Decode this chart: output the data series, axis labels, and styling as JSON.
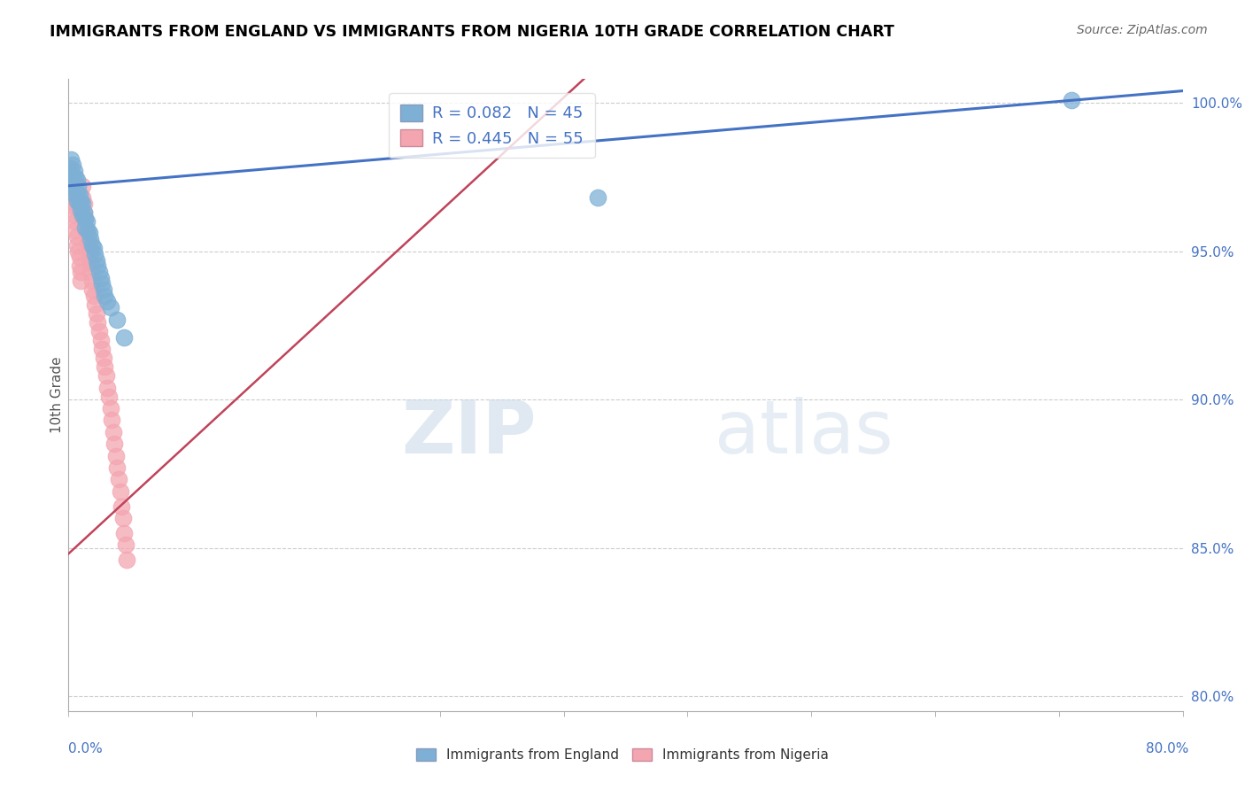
{
  "title": "IMMIGRANTS FROM ENGLAND VS IMMIGRANTS FROM NIGERIA 10TH GRADE CORRELATION CHART",
  "source": "Source: ZipAtlas.com",
  "ylabel": "10th Grade",
  "ylabel_right_ticks": [
    "100.0%",
    "95.0%",
    "90.0%",
    "85.0%",
    "80.0%"
  ],
  "ylabel_right_vals": [
    1.0,
    0.95,
    0.9,
    0.85,
    0.8
  ],
  "xmin": 0.0,
  "xmax": 0.8,
  "ymin": 0.795,
  "ymax": 1.008,
  "blue_R": 0.082,
  "blue_N": 45,
  "pink_R": 0.445,
  "pink_N": 55,
  "blue_color": "#7EB0D5",
  "pink_color": "#F4A6B0",
  "blue_line_color": "#4472C4",
  "pink_line_color": "#C0435A",
  "legend_label_blue": "Immigrants from England",
  "legend_label_pink": "Immigrants from Nigeria",
  "watermark_zip": "ZIP",
  "watermark_atlas": "atlas",
  "blue_line_x0": 0.0,
  "blue_line_y0": 0.972,
  "blue_line_x1": 0.8,
  "blue_line_y1": 1.004,
  "pink_line_x0": 0.0,
  "pink_line_y0": 0.848,
  "pink_line_x1": 0.37,
  "pink_line_y1": 1.008,
  "blue_x": [
    0.001,
    0.001,
    0.001,
    0.002,
    0.002,
    0.003,
    0.003,
    0.004,
    0.004,
    0.005,
    0.005,
    0.006,
    0.006,
    0.006,
    0.007,
    0.007,
    0.008,
    0.008,
    0.009,
    0.009,
    0.01,
    0.01,
    0.011,
    0.012,
    0.012,
    0.013,
    0.014,
    0.015,
    0.016,
    0.017,
    0.018,
    0.019,
    0.02,
    0.021,
    0.022,
    0.023,
    0.024,
    0.025,
    0.026,
    0.028,
    0.03,
    0.035,
    0.04,
    0.38,
    0.72
  ],
  "blue_y": [
    0.978,
    0.975,
    0.972,
    0.981,
    0.976,
    0.979,
    0.974,
    0.977,
    0.971,
    0.975,
    0.969,
    0.974,
    0.97,
    0.967,
    0.972,
    0.968,
    0.969,
    0.966,
    0.967,
    0.964,
    0.966,
    0.962,
    0.963,
    0.961,
    0.958,
    0.96,
    0.957,
    0.956,
    0.954,
    0.952,
    0.951,
    0.949,
    0.947,
    0.945,
    0.943,
    0.941,
    0.939,
    0.937,
    0.935,
    0.933,
    0.931,
    0.927,
    0.921,
    0.968,
    1.001
  ],
  "pink_x": [
    0.001,
    0.001,
    0.002,
    0.002,
    0.003,
    0.004,
    0.004,
    0.005,
    0.005,
    0.006,
    0.006,
    0.007,
    0.008,
    0.008,
    0.009,
    0.009,
    0.01,
    0.01,
    0.011,
    0.011,
    0.012,
    0.012,
    0.013,
    0.014,
    0.015,
    0.015,
    0.016,
    0.016,
    0.017,
    0.017,
    0.018,
    0.019,
    0.02,
    0.021,
    0.022,
    0.023,
    0.024,
    0.025,
    0.026,
    0.027,
    0.028,
    0.029,
    0.03,
    0.031,
    0.032,
    0.033,
    0.034,
    0.035,
    0.036,
    0.037,
    0.038,
    0.039,
    0.04,
    0.041,
    0.042
  ],
  "pink_y": [
    0.975,
    0.971,
    0.973,
    0.969,
    0.967,
    0.965,
    0.962,
    0.96,
    0.957,
    0.955,
    0.952,
    0.95,
    0.948,
    0.945,
    0.943,
    0.94,
    0.972,
    0.968,
    0.966,
    0.963,
    0.961,
    0.958,
    0.956,
    0.953,
    0.951,
    0.948,
    0.946,
    0.943,
    0.94,
    0.937,
    0.935,
    0.932,
    0.929,
    0.926,
    0.923,
    0.92,
    0.917,
    0.914,
    0.911,
    0.908,
    0.904,
    0.901,
    0.897,
    0.893,
    0.889,
    0.885,
    0.881,
    0.877,
    0.873,
    0.869,
    0.864,
    0.86,
    0.855,
    0.851,
    0.846
  ]
}
